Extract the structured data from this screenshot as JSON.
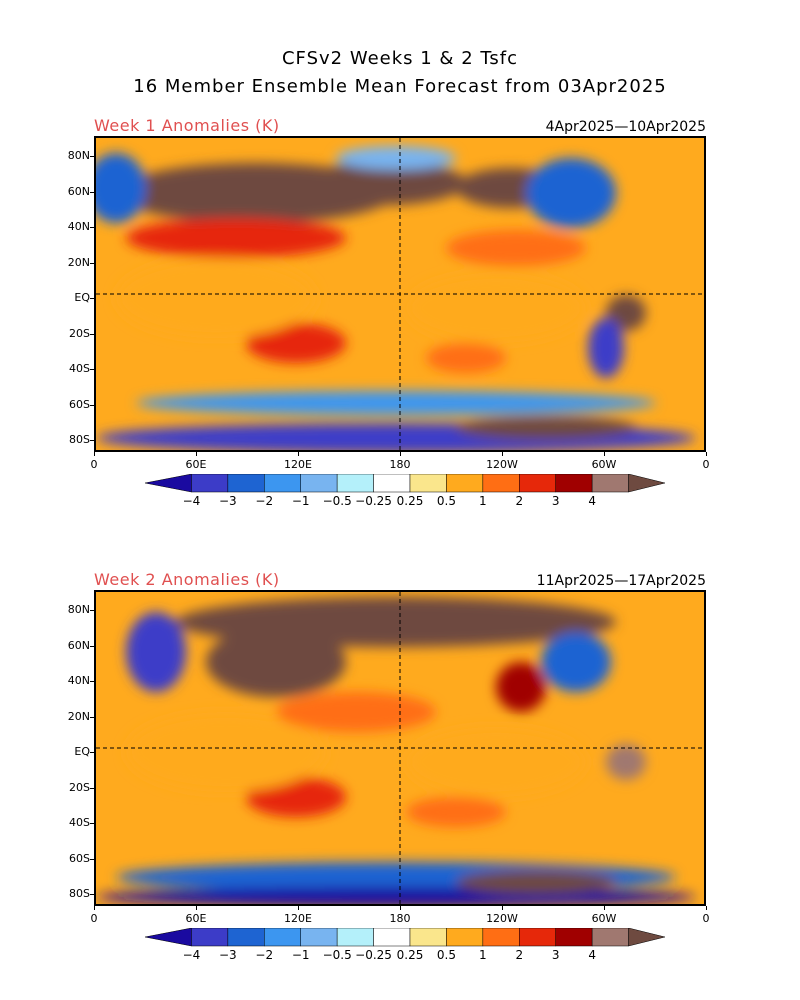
{
  "title_line1": "CFSv2 Weeks 1 & 2 Tsfc",
  "title_line2": "16 Member Ensemble Mean Forecast from 03Apr2025",
  "panels": [
    {
      "label": "Week 1 Anomalies (K)",
      "date_range": "4Apr2025—10Apr2025"
    },
    {
      "label": "Week 2 Anomalies (K)",
      "date_range": "11Apr2025—17Apr2025"
    }
  ],
  "lat_labels": [
    "80N",
    "60N",
    "40N",
    "20N",
    "EQ",
    "20S",
    "40S",
    "60S",
    "80S"
  ],
  "lon_labels": [
    "0",
    "60E",
    "120E",
    "180",
    "120W",
    "60W",
    "0"
  ],
  "colorbar": {
    "labels": [
      "−4",
      "−3",
      "−2",
      "−1",
      "−0.5",
      "−0.25",
      "0.25",
      "0.5",
      "1",
      "2",
      "3",
      "4"
    ],
    "colors": [
      "#1a0aa0",
      "#3c3cc8",
      "#1e64d2",
      "#3c96f0",
      "#78b4f0",
      "#b4f0fa",
      "#ffffff",
      "#fae68c",
      "#ffaa1e",
      "#ff6e14",
      "#e6280a",
      "#a00000",
      "#a07870",
      "#6e4a40"
    ]
  }
}
